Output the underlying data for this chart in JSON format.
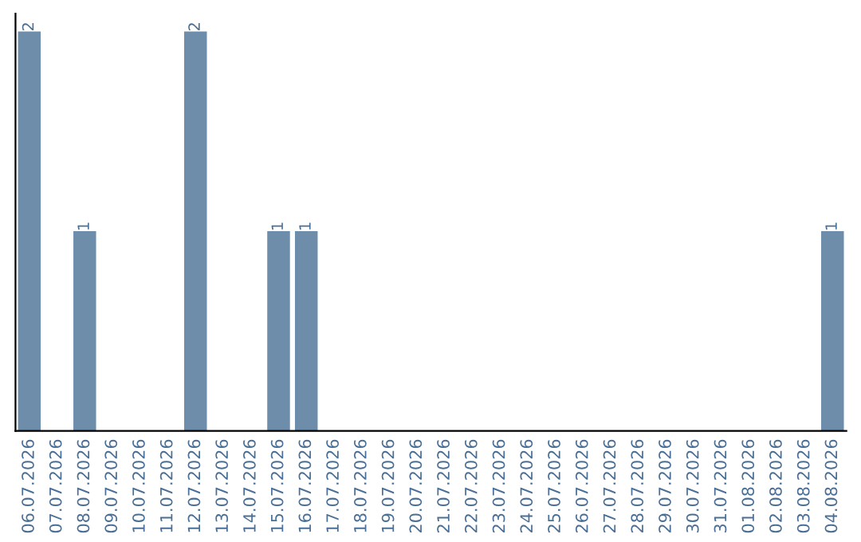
{
  "chart_data": {
    "type": "bar",
    "categories": [
      "06.07.2026",
      "07.07.2026",
      "08.07.2026",
      "09.07.2026",
      "10.07.2026",
      "11.07.2026",
      "12.07.2026",
      "13.07.2026",
      "14.07.2026",
      "15.07.2026",
      "16.07.2026",
      "17.07.2026",
      "18.07.2026",
      "19.07.2026",
      "20.07.2026",
      "21.07.2026",
      "22.07.2026",
      "23.07.2026",
      "24.07.2026",
      "25.07.2026",
      "26.07.2026",
      "27.07.2026",
      "28.07.2026",
      "29.07.2026",
      "30.07.2026",
      "31.07.2026",
      "01.08.2026",
      "02.08.2026",
      "03.08.2026",
      "04.08.2026"
    ],
    "values": [
      2,
      0,
      1,
      0,
      0,
      0,
      2,
      0,
      0,
      1,
      1,
      0,
      0,
      0,
      0,
      0,
      0,
      0,
      0,
      0,
      0,
      0,
      0,
      0,
      0,
      0,
      0,
      0,
      0,
      1
    ],
    "value_labels": [
      "2",
      null,
      "1",
      null,
      null,
      null,
      "2",
      null,
      null,
      "1",
      "1",
      null,
      null,
      null,
      null,
      null,
      null,
      null,
      null,
      null,
      null,
      null,
      null,
      null,
      null,
      null,
      null,
      null,
      null,
      "1"
    ],
    "color": "#6d8dab",
    "tick_labels": "x",
    "grid": false
  }
}
